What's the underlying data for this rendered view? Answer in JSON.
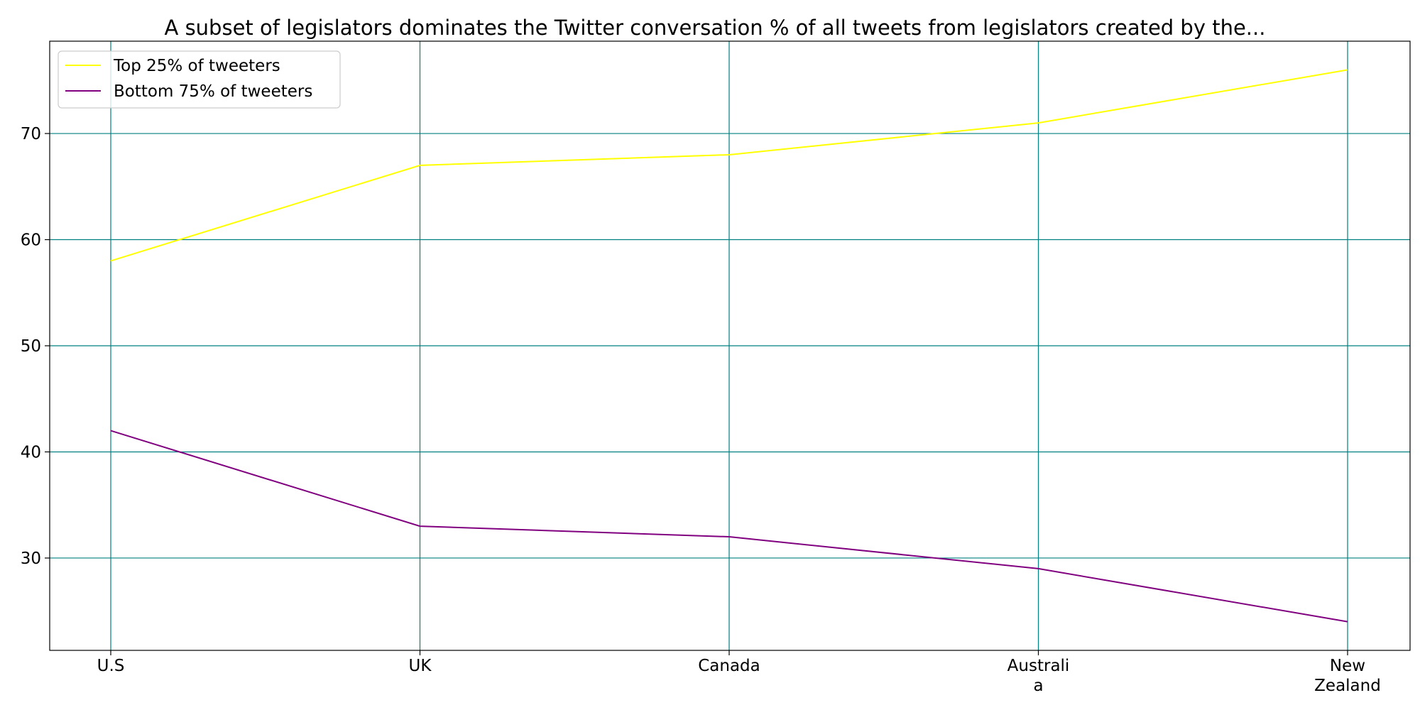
{
  "chart_data": {
    "type": "line",
    "title": "A subset of legislators dominates the Twitter conversation % of all tweets from legislators created by the...",
    "xlabel": "",
    "ylabel": "",
    "categories": [
      "U.S",
      "UK",
      "Canada",
      "Australi\na",
      "New\nZealand"
    ],
    "series": [
      {
        "name": "Top 25% of tweeters",
        "values": [
          58,
          67,
          68,
          71,
          76
        ],
        "color": "#ffff00"
      },
      {
        "name": "Bottom 75% of tweeters",
        "values": [
          42,
          33,
          32,
          29,
          24
        ],
        "color": "#800080"
      }
    ],
    "ylim": [
      21.3,
      78.7
    ],
    "yticks": [
      30,
      40,
      50,
      60,
      70
    ],
    "grid": true,
    "grid_color": "#008080",
    "legend_position": "upper-left"
  }
}
